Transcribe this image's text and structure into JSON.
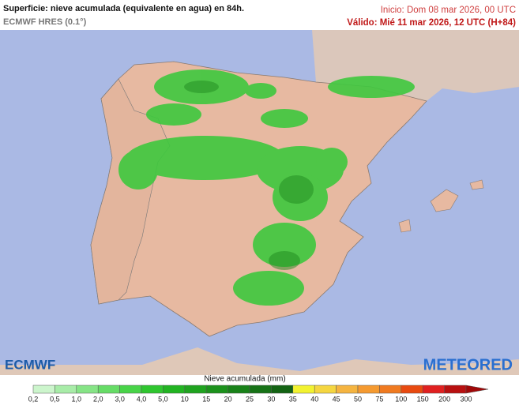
{
  "header": {
    "title": "Superficie: nieve acumulada (equivalente en agua) en 84h.",
    "model": "ECMWF HRES (0.1°)",
    "init": "Inicio: Dom 08 mar 2026, 00 UTC",
    "valid": "Válido: Mié 11 mar 2026, 12 UTC (H+84)"
  },
  "logos": {
    "left": "ECMWF",
    "right": "METEORED"
  },
  "legend": {
    "label": "Nieve acumulada (mm)",
    "ticks": [
      "0,2",
      "0,5",
      "1,0",
      "2,0",
      "3,0",
      "4,0",
      "5,0",
      "10",
      "15",
      "20",
      "25",
      "30",
      "35",
      "40",
      "45",
      "50",
      "75",
      "100",
      "150",
      "200",
      "300"
    ],
    "colors": [
      "#ccf5cc",
      "#a8eca8",
      "#86e486",
      "#66dc66",
      "#48d448",
      "#2fc62f",
      "#22b422",
      "#1fa31f",
      "#1c921c",
      "#198219",
      "#167216",
      "#136313",
      "#f2f230",
      "#f5d640",
      "#f5b440",
      "#f59a30",
      "#f07a20",
      "#e84a10",
      "#e02020",
      "#b81010"
    ],
    "extension": "#a00808"
  }
}
